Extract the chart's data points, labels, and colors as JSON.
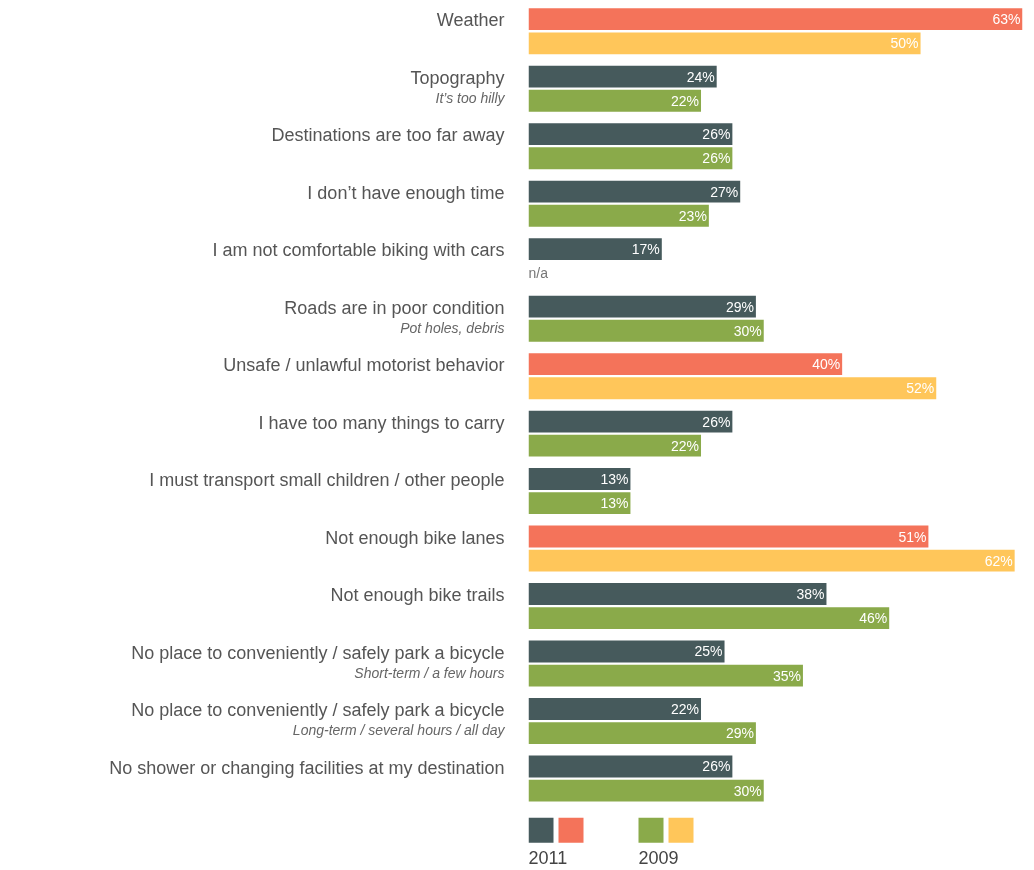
{
  "chart_data": {
    "type": "bar",
    "orientation": "horizontal",
    "categories": [
      "Weather",
      "Topography\nIt’s too hilly",
      "Destinations are too far away",
      "I don’t have enough time",
      "I am not comfortable biking with cars",
      "Roads are in poor condition\nPot holes, debris",
      "Unsafe / unlawful motorist behavior",
      "I have too many things to carry",
      "I must transport small children / other people",
      "Not enough bike lanes",
      "Not enough bike trails",
      "No place to conveniently / safely park a bicycle\nShort-term / a few hours",
      "No place to conveniently / safely park a bicycle\nLong-term / several hours / all day",
      "No shower or changing facilities at my destination"
    ],
    "series": [
      {
        "name": "2011",
        "color": "#465a5c",
        "colors": [
          "#f4735a",
          "#465a5c",
          "#465a5c",
          "#465a5c",
          "#465a5c",
          "#465a5c",
          "#f4735a",
          "#465a5c",
          "#465a5c",
          "#f4735a",
          "#465a5c",
          "#465a5c",
          "#465a5c",
          "#465a5c"
        ],
        "values": [
          63,
          24,
          26,
          27,
          17,
          29,
          40,
          26,
          13,
          51,
          38,
          25,
          22,
          26
        ],
        "value_labels": [
          "63%",
          "24%",
          "26%",
          "27%",
          "17%",
          "29%",
          "40%",
          "26%",
          "13%",
          "51%",
          "38%",
          "25%",
          "22%",
          "26%"
        ]
      },
      {
        "name": "2009",
        "color": "#8aaa4a",
        "colors": [
          "#ffc65a",
          "#8aaa4a",
          "#8aaa4a",
          "#8aaa4a",
          "#8aaa4a",
          "#8aaa4a",
          "#ffc65a",
          "#8aaa4a",
          "#8aaa4a",
          "#ffc65a",
          "#8aaa4a",
          "#8aaa4a",
          "#8aaa4a",
          "#8aaa4a"
        ],
        "values": [
          50,
          22,
          26,
          23,
          null,
          30,
          52,
          22,
          13,
          62,
          46,
          35,
          29,
          30
        ],
        "value_labels": [
          "50%",
          "22%",
          "26%",
          "23%",
          "n/a",
          "30%",
          "52%",
          "22%",
          "13%",
          "62%",
          "46%",
          "35%",
          "29%",
          "30%"
        ]
      }
    ],
    "xlim": [
      0,
      63
    ],
    "tick_labels": "y",
    "grid": false,
    "legend": "bottom left"
  }
}
